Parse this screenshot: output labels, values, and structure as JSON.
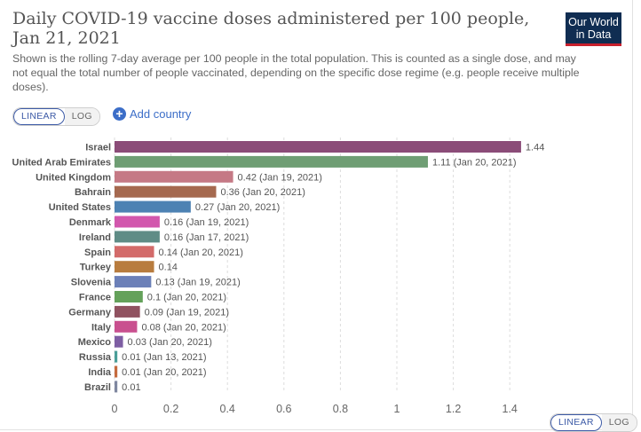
{
  "title": "Daily COVID-19 vaccine doses administered per 100 people, Jan 21, 2021",
  "subtitle": "Shown is the rolling 7-day average per 100 people in the total population. This is counted as a single dose, and may not equal the total number of people vaccinated, depending on the specific dose regime (e.g. people receive multiple doses).",
  "logo": {
    "line1": "Our World",
    "line2": "in Data"
  },
  "scale_toggle": {
    "linear": "LINEAR",
    "log": "LOG"
  },
  "add_country_label": "Add country",
  "colors": {
    "brand_navy": "#102d52",
    "brand_red": "#c8202d",
    "link_blue": "#3c6ec8",
    "grid": "#dddddd"
  },
  "chart_data": {
    "type": "bar",
    "orientation": "horizontal",
    "title": "Daily COVID-19 vaccine doses administered per 100 people, Jan 21, 2021",
    "xlim": [
      0,
      1.5
    ],
    "xticks": [
      0,
      0.2,
      0.4,
      0.6,
      0.8,
      1,
      1.2,
      1.4
    ],
    "grid": true,
    "categories": [
      "Israel",
      "United Arab Emirates",
      "United Kingdom",
      "Bahrain",
      "United States",
      "Denmark",
      "Ireland",
      "Spain",
      "Turkey",
      "Slovenia",
      "France",
      "Germany",
      "Italy",
      "Mexico",
      "Russia",
      "India",
      "Brazil"
    ],
    "values": [
      1.44,
      1.11,
      0.42,
      0.36,
      0.27,
      0.16,
      0.16,
      0.14,
      0.14,
      0.13,
      0.1,
      0.09,
      0.08,
      0.03,
      0.01,
      0.01,
      0.01
    ],
    "labels": [
      "1.44",
      "1.11 (Jan 20, 2021)",
      "0.42 (Jan 19, 2021)",
      "0.36 (Jan 20, 2021)",
      "0.27 (Jan 20, 2021)",
      "0.16 (Jan 19, 2021)",
      "0.16 (Jan 17, 2021)",
      "0.14 (Jan 20, 2021)",
      "0.14",
      "0.13 (Jan 19, 2021)",
      "0.1 (Jan 20, 2021)",
      "0.09 (Jan 19, 2021)",
      "0.08 (Jan 20, 2021)",
      "0.03 (Jan 20, 2021)",
      "0.01 (Jan 13, 2021)",
      "0.01 (Jan 20, 2021)",
      "0.01"
    ],
    "colors": [
      "#8b4c78",
      "#6f9e74",
      "#c57985",
      "#a5694f",
      "#4d82b3",
      "#d257ad",
      "#5f8c86",
      "#d36b6a",
      "#b87c3e",
      "#6c80b8",
      "#64a15a",
      "#905260",
      "#c9508f",
      "#7e5ea3",
      "#4a9e98",
      "#c56a3e",
      "#7f87a0"
    ]
  }
}
